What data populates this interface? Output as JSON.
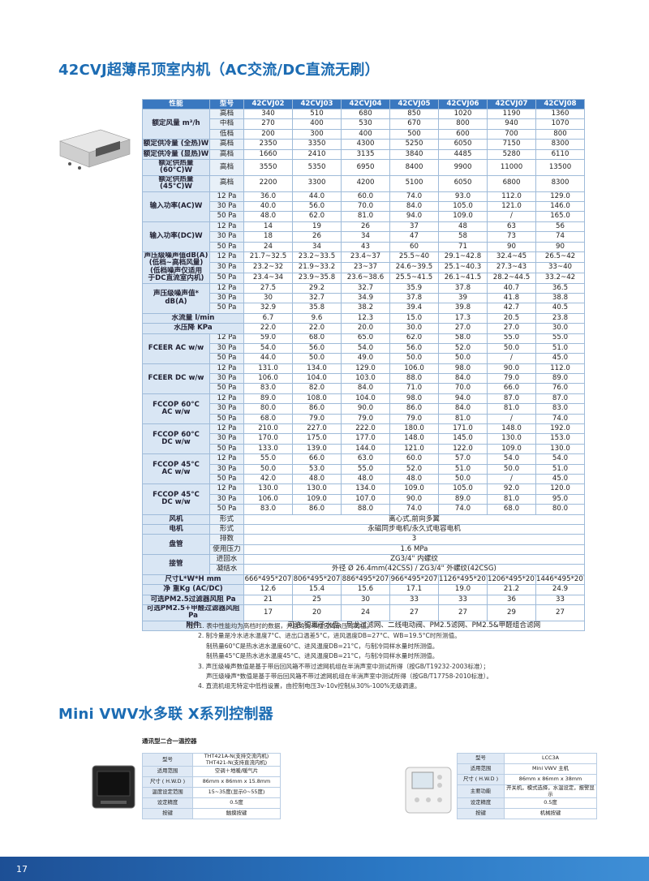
{
  "title": "42CVJ超薄吊顶室内机（AC交流/DC直流无刷）",
  "spec_table": {
    "header": [
      "性能",
      "型号",
      "42CVJ02",
      "42CVJ03",
      "42CVJ04",
      "42CVJ05",
      "42CVJ06",
      "42CVJ07",
      "42CVJ08"
    ],
    "groups": [
      {
        "label": "额定风量 m³/h",
        "rows": [
          {
            "sub": "高档",
            "values": [
              "340",
              "510",
              "680",
              "850",
              "1020",
              "1190",
              "1360"
            ]
          },
          {
            "sub": "中档",
            "values": [
              "270",
              "400",
              "530",
              "670",
              "800",
              "940",
              "1070"
            ]
          },
          {
            "sub": "低档",
            "values": [
              "200",
              "300",
              "400",
              "500",
              "600",
              "700",
              "800"
            ]
          }
        ]
      },
      {
        "label": "额定供冷量 (全热)W",
        "rows": [
          {
            "sub": "高档",
            "values": [
              "2350",
              "3350",
              "4300",
              "5250",
              "6050",
              "7150",
              "8300"
            ]
          }
        ]
      },
      {
        "label": "额定供冷量 (显热)W",
        "rows": [
          {
            "sub": "高档",
            "values": [
              "1660",
              "2410",
              "3135",
              "3840",
              "4485",
              "5280",
              "6110"
            ]
          }
        ]
      },
      {
        "label": "额定供热量 (60°C)W",
        "rows": [
          {
            "sub": "高档",
            "values": [
              "3550",
              "5350",
              "6950",
              "8400",
              "9900",
              "11000",
              "13500"
            ]
          }
        ]
      },
      {
        "label": "额定供热量 (45°C)W",
        "rows": [
          {
            "sub": "高档",
            "values": [
              "2200",
              "3300",
              "4200",
              "5100",
              "6050",
              "6800",
              "8300"
            ]
          }
        ]
      },
      {
        "label": "输入功率(AC)W",
        "rows": [
          {
            "sub": "12 Pa",
            "values": [
              "36.0",
              "44.0",
              "60.0",
              "74.0",
              "93.0",
              "112.0",
              "129.0"
            ]
          },
          {
            "sub": "30 Pa",
            "values": [
              "40.0",
              "56.0",
              "70.0",
              "84.0",
              "105.0",
              "121.0",
              "146.0"
            ]
          },
          {
            "sub": "50 Pa",
            "values": [
              "48.0",
              "62.0",
              "81.0",
              "94.0",
              "109.0",
              "/",
              "165.0"
            ]
          }
        ]
      },
      {
        "label": "输入功率(DC)W",
        "rows": [
          {
            "sub": "12 Pa",
            "values": [
              "14",
              "19",
              "26",
              "37",
              "48",
              "63",
              "56"
            ]
          },
          {
            "sub": "30 Pa",
            "values": [
              "18",
              "26",
              "34",
              "47",
              "58",
              "73",
              "74"
            ]
          },
          {
            "sub": "50 Pa",
            "values": [
              "24",
              "34",
              "43",
              "60",
              "71",
              "90",
              "90"
            ]
          }
        ]
      },
      {
        "label": "声压级噪声值dB(A)\n(低档~高档风量)\n(低档噪声仅适用\n于DC直流室内机)",
        "rows": [
          {
            "sub": "12 Pa",
            "values": [
              "21.7~32.5",
              "23.2~33.5",
              "23.4~37",
              "25.5~40",
              "29.1~42.8",
              "32.4~45",
              "26.5~42"
            ]
          },
          {
            "sub": "30 Pa",
            "values": [
              "23.2~32",
              "21.9~33.2",
              "23~37",
              "24.6~39.5",
              "25.1~40.3",
              "27.3~43",
              "33~40"
            ]
          },
          {
            "sub": "50 Pa",
            "values": [
              "23.4~34",
              "23.9~35.8",
              "23.6~38.6",
              "25.5~41.5",
              "26.1~41.5",
              "28.2~44.5",
              "33.2~42"
            ]
          }
        ]
      },
      {
        "label": "声压级噪声值*\ndB(A)",
        "rows": [
          {
            "sub": "12 Pa",
            "values": [
              "27.5",
              "29.2",
              "32.7",
              "35.9",
              "37.8",
              "40.7",
              "36.5"
            ]
          },
          {
            "sub": "30 Pa",
            "values": [
              "30",
              "32.7",
              "34.9",
              "37.8",
              "39",
              "41.8",
              "38.8"
            ]
          },
          {
            "sub": "50 Pa",
            "values": [
              "32.9",
              "35.8",
              "38.2",
              "39.4",
              "39.8",
              "42.7",
              "40.5"
            ]
          }
        ]
      },
      {
        "label": "水流量 l/min",
        "rows": [
          {
            "values": [
              "6.7",
              "9.6",
              "12.3",
              "15.0",
              "17.3",
              "20.5",
              "23.8"
            ]
          }
        ]
      },
      {
        "label": "水压降 KPa",
        "rows": [
          {
            "values": [
              "22.0",
              "22.0",
              "20.0",
              "30.0",
              "27.0",
              "27.0",
              "30.0"
            ]
          }
        ]
      },
      {
        "label": "FCEER AC w/w",
        "rows": [
          {
            "sub": "12 Pa",
            "values": [
              "59.0",
              "68.0",
              "65.0",
              "62.0",
              "58.0",
              "55.0",
              "55.0"
            ]
          },
          {
            "sub": "30 Pa",
            "values": [
              "54.0",
              "56.0",
              "54.0",
              "56.0",
              "52.0",
              "50.0",
              "51.0"
            ]
          },
          {
            "sub": "50 Pa",
            "values": [
              "44.0",
              "50.0",
              "49.0",
              "50.0",
              "50.0",
              "/",
              "45.0"
            ]
          }
        ]
      },
      {
        "label": "FCEER DC w/w",
        "rows": [
          {
            "sub": "12 Pa",
            "values": [
              "131.0",
              "134.0",
              "129.0",
              "106.0",
              "98.0",
              "90.0",
              "112.0"
            ]
          },
          {
            "sub": "30 Pa",
            "values": [
              "106.0",
              "104.0",
              "103.0",
              "88.0",
              "84.0",
              "79.0",
              "89.0"
            ]
          },
          {
            "sub": "50 Pa",
            "values": [
              "83.0",
              "82.0",
              "84.0",
              "71.0",
              "70.0",
              "66.0",
              "76.0"
            ]
          }
        ]
      },
      {
        "label": "FCCOP 60°C\nAC w/w",
        "rows": [
          {
            "sub": "12 Pa",
            "values": [
              "89.0",
              "108.0",
              "104.0",
              "98.0",
              "94.0",
              "87.0",
              "87.0"
            ]
          },
          {
            "sub": "30 Pa",
            "values": [
              "80.0",
              "86.0",
              "90.0",
              "86.0",
              "84.0",
              "81.0",
              "83.0"
            ]
          },
          {
            "sub": "50 Pa",
            "values": [
              "68.0",
              "79.0",
              "79.0",
              "79.0",
              "81.0",
              "/",
              "74.0"
            ]
          }
        ]
      },
      {
        "label": "FCCOP 60°C\nDC w/w",
        "rows": [
          {
            "sub": "12 Pa",
            "values": [
              "210.0",
              "227.0",
              "222.0",
              "180.0",
              "171.0",
              "148.0",
              "192.0"
            ]
          },
          {
            "sub": "30 Pa",
            "values": [
              "170.0",
              "175.0",
              "177.0",
              "148.0",
              "145.0",
              "130.0",
              "153.0"
            ]
          },
          {
            "sub": "50 Pa",
            "values": [
              "133.0",
              "139.0",
              "144.0",
              "121.0",
              "122.0",
              "109.0",
              "130.0"
            ]
          }
        ]
      },
      {
        "label": "FCCOP 45°C\nAC w/w",
        "rows": [
          {
            "sub": "12 Pa",
            "values": [
              "55.0",
              "66.0",
              "63.0",
              "60.0",
              "57.0",
              "54.0",
              "54.0"
            ]
          },
          {
            "sub": "30 Pa",
            "values": [
              "50.0",
              "53.0",
              "55.0",
              "52.0",
              "51.0",
              "50.0",
              "51.0"
            ]
          },
          {
            "sub": "50 Pa",
            "values": [
              "42.0",
              "48.0",
              "48.0",
              "48.0",
              "50.0",
              "/",
              "45.0"
            ]
          }
        ]
      },
      {
        "label": "FCCOP 45°C\nDC w/w",
        "rows": [
          {
            "sub": "12 Pa",
            "values": [
              "130.0",
              "130.0",
              "134.0",
              "109.0",
              "105.0",
              "92.0",
              "120.0"
            ]
          },
          {
            "sub": "30 Pa",
            "values": [
              "106.0",
              "109.0",
              "107.0",
              "90.0",
              "89.0",
              "81.0",
              "95.0"
            ]
          },
          {
            "sub": "50 Pa",
            "values": [
              "83.0",
              "86.0",
              "88.0",
              "74.0",
              "74.0",
              "68.0",
              "80.0"
            ]
          }
        ]
      },
      {
        "label": "风机",
        "rows": [
          {
            "sub": "形式",
            "values": [
              "离心式,前向多翼"
            ]
          }
        ]
      },
      {
        "label": "电机",
        "rows": [
          {
            "sub": "形式",
            "values": [
              "永磁同步电机/永久式电容电机"
            ]
          }
        ]
      },
      {
        "label": "盘管",
        "rows": [
          {
            "sub": "排数",
            "values": [
              "3"
            ]
          },
          {
            "sub": "使用压力",
            "values": [
              "1.6 MPa"
            ]
          }
        ]
      },
      {
        "label": "接管",
        "rows": [
          {
            "sub": "进回水",
            "values": [
              "ZG3/4\" 内螺纹"
            ]
          },
          {
            "sub": "凝结水",
            "values": [
              "外径 Ø 26.4mm(42CSS) / ZG3/4\" 外螺纹(42CSG)"
            ]
          }
        ]
      },
      {
        "label": "尺寸L*W*H mm",
        "rows": [
          {
            "values": [
              "666*495*207",
              "806*495*207",
              "886*495*207",
              "966*495*207",
              "1126*495*207",
              "1206*495*207",
              "1446*495*207"
            ]
          }
        ]
      },
      {
        "label": "净 重Kg (AC/DC)",
        "rows": [
          {
            "values": [
              "12.6",
              "15.4",
              "15.6",
              "17.1",
              "19.0",
              "21.2",
              "24.9"
            ]
          }
        ]
      },
      {
        "label": "可选PM2.5过滤器风阻 Pa",
        "rows": [
          {
            "values": [
              "21",
              "25",
              "30",
              "33",
              "33",
              "36",
              "33"
            ]
          }
        ]
      },
      {
        "label": "可选PM2.5+甲醛过滤器风阻Pa",
        "rows": [
          {
            "values": [
              "17",
              "20",
              "24",
              "27",
              "27",
              "29",
              "27"
            ]
          }
        ]
      },
      {
        "label": "附件",
        "rows": [
          {
            "values": [
              "可选:银离子水盘、尼龙过滤网、二线电动阀、PM2.5滤网、PM2.5&甲醛组合滤网"
            ]
          }
        ]
      }
    ]
  },
  "notes": [
    "注: 1. 表中性能均为高档时的数据，并且均为带相应的余压时的值。",
    "2. 制冷量是冷水进水温度7°C、进出口温差5°C，进风温度DB=27°C、WB=19.5°C时所测值。",
    "制热量60°C是热水进水温度60°C、进风温度DB=21°C，与制冷同样水量时所测值。",
    "制热量45°C是热水进水温度45°C、进风温度DB=21°C，与制冷同样水量时所测值。",
    "3. 声压级噪声数值是基于带后回风箱不带过滤网机组在半消声室中测试所得（按GB/T19232-2003标准）；",
    "声压级噪声*数值是基于带后回风箱不带过滤网机组在半消声室中测试所得（按GB/T17758-2010标准）。",
    "4. 直流机组无特定中低档设置，由控制电压3v-10v控制从30%-100%无级调速。"
  ],
  "section2": {
    "title": "Mini VWV水多联 X系列控制器",
    "subtitle": "通讯型二合一温控器",
    "tables": [
      {
        "rows": [
          [
            "型号",
            "THT421A-N(支持交流内机)\nTHT421-N(支持直流内机)"
          ],
          [
            "适用范围",
            "空调＋地暖/暖气片"
          ],
          [
            "尺寸 ( H.W.D )",
            "86mm x 86mm x 15.8mm"
          ],
          [
            "温度设定范围",
            "15~35度(显示0~55度)"
          ],
          [
            "设定精度",
            "0.5度"
          ],
          [
            "按键",
            "触摸按键"
          ]
        ]
      },
      {
        "rows": [
          [
            "型号",
            "LCC3A"
          ],
          [
            "适用范围",
            "Mini VWV 主机"
          ],
          [
            "尺寸 ( H.W.D )",
            "86mm x 86mm x 38mm"
          ],
          [
            "主要功能",
            "开关机，模式选择，水温设定，报警显示"
          ],
          [
            "设定精度",
            "0.5度"
          ],
          [
            "按键",
            "机械按键"
          ]
        ]
      }
    ]
  },
  "footer": {
    "page_number": "17"
  }
}
